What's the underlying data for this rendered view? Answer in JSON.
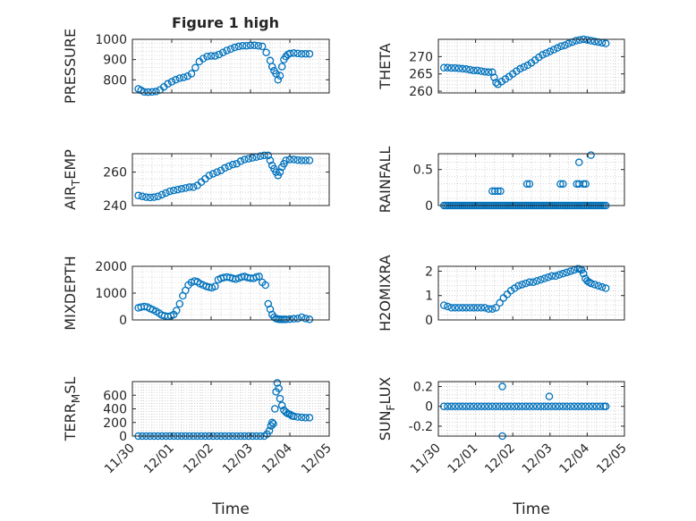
{
  "figure": {
    "title": "Figure 1 high"
  },
  "chart_data": [
    {
      "id": "pressure",
      "type": "scatter",
      "ylabel": "PRESSURE",
      "ylim": [
        735,
        1000
      ],
      "yticks": [
        800,
        900,
        1000
      ],
      "xlim": [
        0,
        5
      ],
      "xticks_visible": false,
      "grid": true,
      "series": [
        {
          "x": [
            0.15,
            0.22,
            0.3,
            0.4,
            0.5,
            0.6,
            0.7,
            0.8,
            0.9,
            1.0,
            1.1,
            1.2,
            1.3,
            1.4,
            1.5,
            1.6,
            1.7,
            1.8,
            1.9,
            2.0,
            2.1,
            2.2,
            2.3,
            2.4,
            2.5,
            2.6,
            2.7,
            2.8,
            2.9,
            3.0,
            3.1,
            3.2,
            3.3,
            3.4,
            3.5,
            3.55,
            3.6,
            3.65,
            3.7,
            3.75,
            3.8,
            3.85,
            3.9,
            3.95,
            4.0,
            4.1,
            4.2,
            4.3,
            4.4,
            4.5
          ],
          "y": [
            755,
            748,
            740,
            739,
            740,
            742,
            750,
            765,
            780,
            790,
            800,
            808,
            812,
            818,
            830,
            860,
            890,
            905,
            915,
            918,
            918,
            925,
            935,
            945,
            952,
            960,
            965,
            968,
            968,
            970,
            970,
            968,
            965,
            935,
            895,
            865,
            845,
            830,
            800,
            820,
            865,
            900,
            915,
            925,
            930,
            932,
            930,
            928,
            928,
            928
          ]
        }
      ]
    },
    {
      "id": "theta",
      "type": "scatter",
      "ylabel": "THETA",
      "ylim": [
        259.5,
        275
      ],
      "yticks": [
        260,
        265,
        270
      ],
      "xlim": [
        0,
        5
      ],
      "xticks_visible": false,
      "grid": true,
      "series": [
        {
          "x": [
            0.15,
            0.25,
            0.35,
            0.45,
            0.55,
            0.65,
            0.75,
            0.85,
            0.95,
            1.05,
            1.15,
            1.25,
            1.35,
            1.45,
            1.5,
            1.55,
            1.6,
            1.7,
            1.8,
            1.9,
            2.0,
            2.1,
            2.2,
            2.3,
            2.4,
            2.5,
            2.6,
            2.7,
            2.8,
            2.9,
            3.0,
            3.1,
            3.2,
            3.3,
            3.4,
            3.5,
            3.6,
            3.7,
            3.8,
            3.9,
            4.0,
            4.1,
            4.2,
            4.3,
            4.4,
            4.5
          ],
          "y": [
            266.8,
            266.8,
            266.7,
            266.7,
            266.6,
            266.5,
            266.4,
            266.2,
            266.0,
            266.0,
            265.8,
            265.6,
            265.5,
            265.5,
            264.0,
            262.5,
            262.0,
            262.8,
            263.5,
            264.2,
            265.0,
            265.8,
            266.5,
            267.0,
            267.5,
            268.2,
            269.0,
            269.8,
            270.5,
            271.0,
            271.5,
            272.0,
            272.5,
            273.0,
            273.3,
            273.8,
            274.2,
            274.6,
            274.8,
            275.0,
            274.8,
            274.6,
            274.4,
            274.2,
            274.0,
            273.8
          ]
        }
      ]
    },
    {
      "id": "air_temp",
      "type": "scatter",
      "ylabel": "AIR_TEMP",
      "ylim": [
        240,
        271
      ],
      "yticks": [
        240,
        260
      ],
      "xlim": [
        0,
        5
      ],
      "xticks_visible": false,
      "grid": true,
      "series": [
        {
          "x": [
            0.15,
            0.25,
            0.35,
            0.45,
            0.55,
            0.65,
            0.75,
            0.85,
            0.95,
            1.05,
            1.15,
            1.25,
            1.35,
            1.45,
            1.55,
            1.65,
            1.75,
            1.85,
            1.95,
            2.05,
            2.15,
            2.25,
            2.35,
            2.45,
            2.55,
            2.65,
            2.75,
            2.85,
            2.95,
            3.05,
            3.15,
            3.25,
            3.35,
            3.45,
            3.5,
            3.55,
            3.6,
            3.65,
            3.7,
            3.75,
            3.8,
            3.85,
            3.9,
            4.0,
            4.1,
            4.2,
            4.3,
            4.4,
            4.5
          ],
          "y": [
            246,
            245.5,
            245,
            244.8,
            245,
            245.5,
            246.5,
            247.5,
            248.5,
            249,
            249.5,
            250,
            250.5,
            251,
            251,
            252,
            254,
            256,
            258,
            259,
            260,
            261,
            262.5,
            263.5,
            264.5,
            265,
            266.5,
            267.5,
            268,
            268.5,
            269,
            269.5,
            270,
            270,
            267,
            264,
            262,
            260,
            258,
            260,
            263,
            265,
            267,
            267.5,
            267.5,
            267.2,
            267,
            267,
            267
          ]
        }
      ]
    },
    {
      "id": "rainfall",
      "type": "scatter",
      "ylabel": "RAINFALL",
      "ylim": [
        0,
        0.72
      ],
      "yticks": [
        0,
        0.5
      ],
      "xlim": [
        0,
        5
      ],
      "xticks_visible": false,
      "grid": true,
      "series": [
        {
          "x": [
            0.15,
            0.2,
            0.25,
            0.3,
            0.35,
            0.4,
            0.45,
            0.5,
            0.55,
            0.6,
            0.65,
            0.7,
            0.75,
            0.8,
            0.85,
            0.9,
            0.95,
            1.0,
            1.05,
            1.1,
            1.15,
            1.2,
            1.25,
            1.3,
            1.35,
            1.4,
            1.45,
            1.5,
            1.55,
            1.6,
            1.65,
            1.7,
            1.75,
            1.8,
            1.85,
            1.9,
            1.95,
            2.0,
            2.05,
            2.1,
            2.15,
            2.2,
            2.25,
            2.3,
            2.35,
            2.4,
            2.45,
            2.5,
            2.55,
            2.6,
            2.65,
            2.7,
            2.75,
            2.8,
            2.85,
            2.9,
            2.95,
            3.0,
            3.05,
            3.1,
            3.15,
            3.2,
            3.25,
            3.3,
            3.35,
            3.4,
            3.45,
            3.5,
            3.55,
            3.6,
            3.65,
            3.7,
            3.75,
            3.8,
            3.85,
            3.9,
            3.95,
            4.0,
            4.05,
            4.1,
            4.15,
            4.2,
            4.25,
            4.3,
            4.35,
            4.4,
            4.45,
            4.5,
            1.45,
            1.52,
            1.6,
            1.67,
            2.38,
            2.45,
            3.28,
            3.35,
            3.72,
            3.78,
            3.9,
            3.96,
            3.78,
            4.1
          ],
          "y": [
            0,
            0,
            0,
            0,
            0,
            0,
            0,
            0,
            0,
            0,
            0,
            0,
            0,
            0,
            0,
            0,
            0,
            0,
            0,
            0,
            0,
            0,
            0,
            0,
            0,
            0,
            0,
            0,
            0,
            0,
            0,
            0,
            0,
            0,
            0,
            0,
            0,
            0,
            0,
            0,
            0,
            0,
            0,
            0,
            0,
            0,
            0,
            0,
            0,
            0,
            0,
            0,
            0,
            0,
            0,
            0,
            0,
            0,
            0,
            0,
            0,
            0,
            0,
            0,
            0,
            0,
            0,
            0,
            0,
            0,
            0,
            0,
            0,
            0,
            0,
            0,
            0,
            0,
            0,
            0,
            0,
            0,
            0,
            0,
            0,
            0,
            0,
            0,
            0.2,
            0.2,
            0.2,
            0.2,
            0.3,
            0.3,
            0.3,
            0.3,
            0.3,
            0.3,
            0.3,
            0.3,
            0.6,
            0.7
          ]
        }
      ]
    },
    {
      "id": "mixdepth",
      "type": "scatter",
      "ylabel": "MIXDEPTH",
      "ylim": [
        0,
        2000
      ],
      "yticks": [
        0,
        1000,
        2000
      ],
      "xlim": [
        0,
        5
      ],
      "xticks_visible": false,
      "grid": true,
      "series": [
        {
          "x": [
            0.15,
            0.22,
            0.3,
            0.38,
            0.45,
            0.52,
            0.6,
            0.68,
            0.75,
            0.82,
            0.9,
            0.98,
            1.05,
            1.12,
            1.2,
            1.28,
            1.35,
            1.42,
            1.5,
            1.58,
            1.65,
            1.72,
            1.8,
            1.88,
            1.95,
            2.02,
            2.1,
            2.18,
            2.25,
            2.32,
            2.4,
            2.48,
            2.55,
            2.62,
            2.7,
            2.78,
            2.85,
            2.92,
            3.0,
            3.08,
            3.15,
            3.22,
            3.3,
            3.38,
            3.45,
            3.5,
            3.55,
            3.6,
            3.65,
            3.7,
            3.75,
            3.8,
            3.85,
            3.9,
            4.0,
            4.1,
            4.2,
            4.3,
            4.4,
            4.5
          ],
          "y": [
            450,
            480,
            500,
            480,
            420,
            380,
            320,
            250,
            180,
            150,
            130,
            150,
            200,
            350,
            600,
            900,
            1100,
            1300,
            1400,
            1450,
            1420,
            1350,
            1300,
            1250,
            1220,
            1200,
            1250,
            1500,
            1550,
            1580,
            1600,
            1580,
            1550,
            1520,
            1560,
            1600,
            1620,
            1580,
            1560,
            1550,
            1600,
            1620,
            1400,
            1300,
            600,
            400,
            200,
            100,
            50,
            30,
            20,
            20,
            20,
            20,
            30,
            40,
            50,
            100,
            50,
            20
          ]
        }
      ]
    },
    {
      "id": "h2omixra",
      "type": "scatter",
      "ylabel": "H2OMIXRA",
      "ylim": [
        0,
        2.2
      ],
      "yticks": [
        0,
        1,
        2
      ],
      "xlim": [
        0,
        5
      ],
      "xticks_visible": false,
      "grid": true,
      "series": [
        {
          "x": [
            0.15,
            0.25,
            0.35,
            0.45,
            0.55,
            0.65,
            0.75,
            0.85,
            0.95,
            1.05,
            1.15,
            1.25,
            1.35,
            1.45,
            1.55,
            1.65,
            1.75,
            1.85,
            1.95,
            2.05,
            2.15,
            2.25,
            2.35,
            2.45,
            2.55,
            2.65,
            2.75,
            2.85,
            2.95,
            3.05,
            3.15,
            3.25,
            3.35,
            3.45,
            3.55,
            3.65,
            3.75,
            3.8,
            3.85,
            3.9,
            3.95,
            4.0,
            4.05,
            4.1,
            4.2,
            4.3,
            4.4,
            4.5
          ],
          "y": [
            0.6,
            0.55,
            0.5,
            0.5,
            0.5,
            0.5,
            0.5,
            0.5,
            0.5,
            0.5,
            0.5,
            0.5,
            0.45,
            0.45,
            0.5,
            0.7,
            0.9,
            1.05,
            1.2,
            1.3,
            1.4,
            1.45,
            1.5,
            1.55,
            1.55,
            1.6,
            1.65,
            1.7,
            1.75,
            1.8,
            1.8,
            1.85,
            1.9,
            1.95,
            2.0,
            2.05,
            2.1,
            2.08,
            2.05,
            1.9,
            1.7,
            1.6,
            1.55,
            1.5,
            1.45,
            1.4,
            1.35,
            1.3
          ]
        }
      ]
    },
    {
      "id": "terr_msl",
      "type": "scatter",
      "ylabel": "TERR_MSL",
      "ylim": [
        0,
        800
      ],
      "yticks": [
        0,
        200,
        400,
        600
      ],
      "xlim": [
        0,
        5
      ],
      "xticks": [
        0,
        1,
        2,
        3,
        4,
        5
      ],
      "xticklabels": [
        "11/30",
        "12/01",
        "12/02",
        "12/03",
        "12/04",
        "12/05"
      ],
      "xlabel": "Time",
      "grid": true,
      "series": [
        {
          "x": [
            0.15,
            0.25,
            0.35,
            0.45,
            0.55,
            0.65,
            0.75,
            0.85,
            0.95,
            1.05,
            1.15,
            1.25,
            1.35,
            1.45,
            1.55,
            1.65,
            1.75,
            1.85,
            1.95,
            2.05,
            2.15,
            2.25,
            2.35,
            2.45,
            2.55,
            2.65,
            2.75,
            2.85,
            2.95,
            3.05,
            3.15,
            3.25,
            3.35,
            3.42,
            3.48,
            3.52,
            3.55,
            3.58,
            3.62,
            3.65,
            3.68,
            3.72,
            3.75,
            3.8,
            3.85,
            3.9,
            3.95,
            4.0,
            4.05,
            4.1,
            4.2,
            4.3,
            4.4,
            4.5
          ],
          "y": [
            0,
            0,
            0,
            0,
            0,
            0,
            0,
            0,
            0,
            0,
            0,
            0,
            0,
            0,
            0,
            0,
            0,
            0,
            0,
            0,
            0,
            0,
            0,
            0,
            0,
            0,
            0,
            0,
            0,
            0,
            0,
            0,
            0,
            30,
            80,
            150,
            200,
            180,
            400,
            650,
            780,
            700,
            550,
            450,
            380,
            350,
            330,
            320,
            300,
            290,
            280,
            275,
            270,
            270
          ]
        }
      ]
    },
    {
      "id": "sun_flux",
      "type": "scatter",
      "ylabel": "SUN_FLUX",
      "ylim": [
        -0.3,
        0.25
      ],
      "yticks": [
        -0.2,
        0,
        0.2
      ],
      "xlim": [
        0,
        5
      ],
      "xticks": [
        0,
        1,
        2,
        3,
        4,
        5
      ],
      "xticklabels": [
        "11/30",
        "12/01",
        "12/02",
        "12/03",
        "12/04",
        "12/05"
      ],
      "xlabel": "Time",
      "grid": true,
      "series": [
        {
          "x": [
            0.15,
            0.25,
            0.35,
            0.45,
            0.55,
            0.65,
            0.75,
            0.85,
            0.95,
            1.05,
            1.15,
            1.25,
            1.35,
            1.45,
            1.55,
            1.65,
            1.75,
            1.85,
            1.95,
            2.05,
            2.15,
            2.25,
            2.35,
            2.45,
            2.55,
            2.65,
            2.75,
            2.85,
            2.95,
            3.05,
            3.15,
            3.25,
            3.35,
            3.45,
            3.55,
            3.65,
            3.75,
            3.85,
            3.95,
            4.05,
            4.15,
            4.25,
            4.35,
            4.45,
            4.5,
            1.72,
            1.72,
            2.98
          ],
          "y": [
            0,
            0,
            0,
            0,
            0,
            0,
            0,
            0,
            0,
            0,
            0,
            0,
            0,
            0,
            0,
            0,
            0,
            0,
            0,
            0,
            0,
            0,
            0,
            0,
            0,
            0,
            0,
            0,
            0,
            0,
            0,
            0,
            0,
            0,
            0,
            0,
            0,
            0,
            0,
            0,
            0,
            0,
            0,
            0,
            0,
            0.2,
            -0.3,
            0.1
          ]
        }
      ]
    }
  ]
}
